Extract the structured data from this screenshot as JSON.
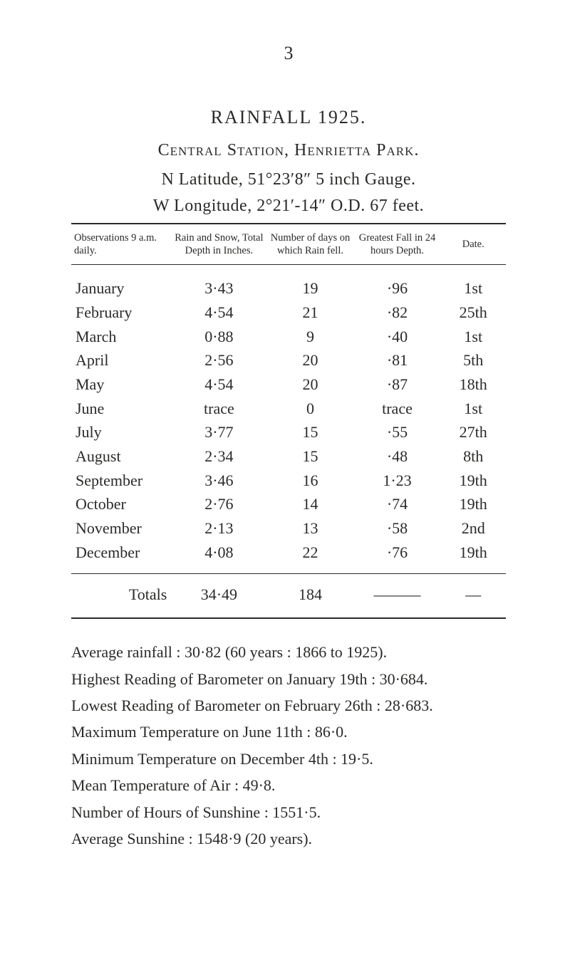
{
  "page_number": "3",
  "title": "RAINFALL  1925.",
  "subtitle": "Central Station, Henrietta Park.",
  "coord_lat": "N Latitude, 51°23′8″   5 inch Gauge.",
  "coord_lon": "W Longitude, 2°21′-14″   O.D. 67 feet.",
  "columns": [
    "Observations 9 a.m. daily.",
    "Rain and Snow, Total Depth in Inches.",
    "Number of days on which Rain fell.",
    "Greatest Fall in 24 hours Depth.",
    "Date."
  ],
  "rows": [
    [
      "January",
      "3·43",
      "19",
      "·96",
      "1st"
    ],
    [
      "February",
      "4·54",
      "21",
      "·82",
      "25th"
    ],
    [
      "March",
      "0·88",
      "9",
      "·40",
      "1st"
    ],
    [
      "April",
      "2·56",
      "20",
      "·81",
      "5th"
    ],
    [
      "May",
      "4·54",
      "20",
      "·87",
      "18th"
    ],
    [
      "June",
      "trace",
      "0",
      "trace",
      "1st"
    ],
    [
      "July",
      "3·77",
      "15",
      "·55",
      "27th"
    ],
    [
      "August",
      "2·34",
      "15",
      "·48",
      "8th"
    ],
    [
      "September",
      "3·46",
      "16",
      "1·23",
      "19th"
    ],
    [
      "October",
      "2·76",
      "14",
      "·74",
      "19th"
    ],
    [
      "November",
      "2·13",
      "13",
      "·58",
      "2nd"
    ],
    [
      "December",
      "4·08",
      "22",
      "·76",
      "19th"
    ]
  ],
  "totals": [
    "Totals",
    "34·49",
    "184",
    "———",
    "—"
  ],
  "summary": [
    "Average rainfall : 30·82 (60 years : 1866 to 1925).",
    "Highest Reading of Barometer on January 19th : 30·684.",
    "Lowest Reading of Barometer on February 26th : 28·683.",
    "Maximum Temperature on June 11th : 86·0.",
    "Minimum Temperature on December 4th : 19·5.",
    "Mean Temperature of Air : 49·8.",
    "Number of Hours of Sunshine : 1551·5.",
    "Average Sunshine : 1548·9 (20 years)."
  ]
}
